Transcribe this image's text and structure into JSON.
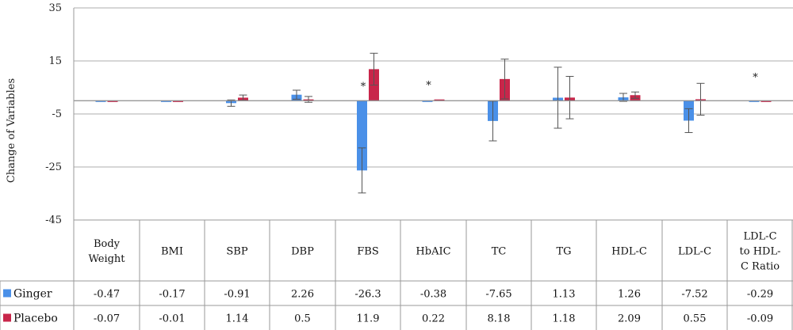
{
  "chart_data": {
    "type": "bar",
    "ylabel": "Change of Variables",
    "ylim": [
      -45,
      35
    ],
    "yticks": [
      35,
      15,
      -5,
      -25,
      -45
    ],
    "grid": true,
    "legend_placement": "bottom-left-table",
    "categories": [
      [
        "Body",
        "Weight"
      ],
      [
        "BMI"
      ],
      [
        "SBP"
      ],
      [
        "DBP"
      ],
      [
        "FBS"
      ],
      [
        "HbAIC"
      ],
      [
        "TC"
      ],
      [
        "TG"
      ],
      [
        "HDL-C"
      ],
      [
        "LDL-C"
      ],
      [
        "LDL-C",
        "to HDL-",
        "C  Ratio"
      ]
    ],
    "series": [
      {
        "name": "Ginger",
        "color": "#4a90e8",
        "values": [
          -0.47,
          -0.17,
          -0.91,
          2.26,
          -26.3,
          -0.38,
          -7.65,
          1.13,
          1.26,
          -7.52,
          -0.29
        ],
        "value_labels": [
          "-0.47",
          "-0.17",
          "-0.91",
          "2.26",
          "-26.3",
          "-0.38",
          "-7.65",
          "1.13",
          "1.26",
          "-7.52",
          "-0.29"
        ],
        "errors": [
          0.3,
          0.1,
          1.2,
          1.7,
          8.5,
          0.1,
          7.5,
          11.5,
          1.5,
          4.5,
          0.1
        ]
      },
      {
        "name": "Placebo",
        "color": "#c8264a",
        "values": [
          -0.07,
          -0.01,
          1.14,
          0.5,
          11.9,
          0.22,
          8.18,
          1.18,
          2.09,
          0.55,
          -0.09
        ],
        "value_labels": [
          "-0.07",
          "-0.01",
          "1.14",
          "0.5",
          "11.9",
          "0.22",
          "8.18",
          "1.18",
          "2.09",
          "0.55",
          "-0.09"
        ],
        "errors": [
          0.3,
          0.1,
          1.0,
          1.1,
          6.0,
          0.1,
          7.5,
          8.0,
          1.2,
          6.0,
          0.1
        ]
      }
    ],
    "annotations": [
      {
        "category_index": 4,
        "text": "*",
        "y": 6.5
      },
      {
        "category_index": 5,
        "text": "*",
        "y": 7
      },
      {
        "category_index": 10,
        "text": "*",
        "y": 10
      }
    ]
  }
}
